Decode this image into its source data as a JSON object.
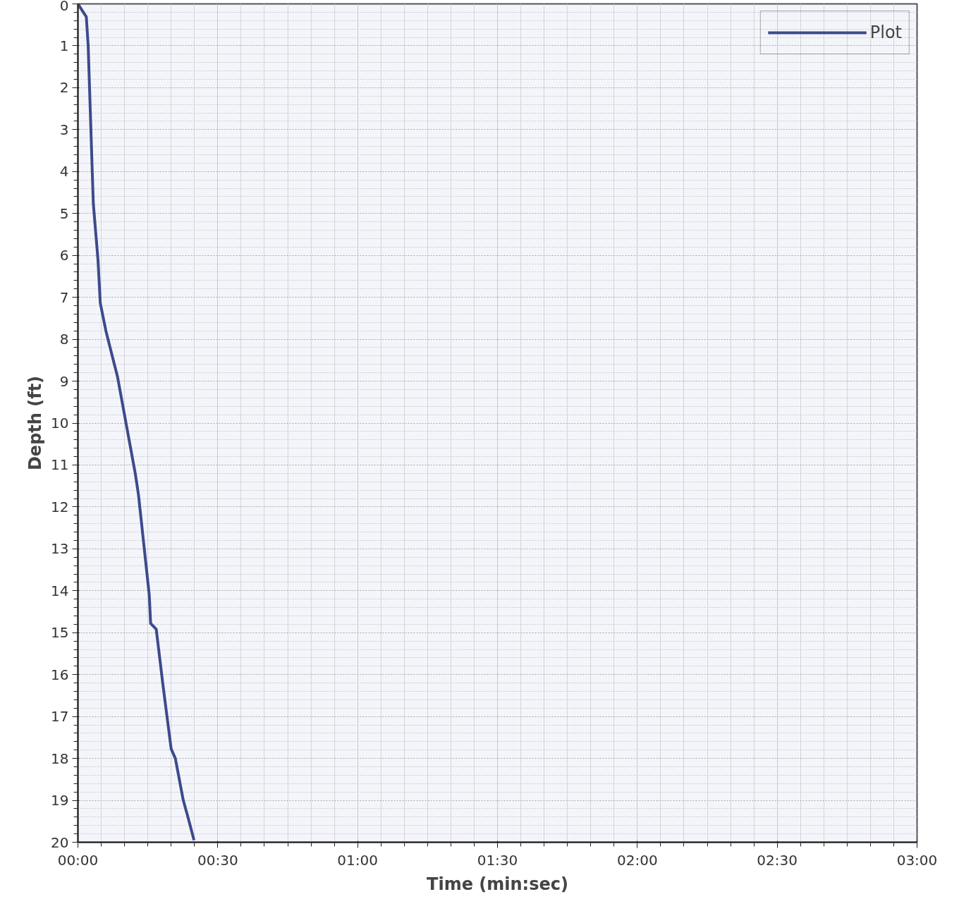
{
  "chart_data": {
    "type": "line",
    "xlabel": "Time (min:sec)",
    "ylabel": "Depth (ft)",
    "series": [
      {
        "name": "Plot",
        "color": "#3d4a8c",
        "x": [
          0,
          1.8,
          2.2,
          3.3,
          4.3,
          4.8,
          6.0,
          8.5,
          12.3,
          13.0,
          15.3,
          15.6,
          16.8,
          18.3,
          20.0,
          20.9,
          22.6,
          23.6,
          24.9
        ],
        "values": [
          0,
          0.31,
          1.0,
          4.76,
          6.1,
          7.14,
          7.8,
          8.9,
          11.2,
          11.72,
          14.1,
          14.78,
          14.92,
          16.3,
          17.77,
          18.0,
          19.0,
          19.4,
          19.95
        ]
      }
    ],
    "xlim": [
      0,
      180
    ],
    "ylim": [
      20,
      0
    ],
    "xticks": [
      {
        "value": 0,
        "label": "00:00"
      },
      {
        "value": 30,
        "label": "00:30"
      },
      {
        "value": 60,
        "label": "01:00"
      },
      {
        "value": 90,
        "label": "01:30"
      },
      {
        "value": 120,
        "label": "02:00"
      },
      {
        "value": 150,
        "label": "02:30"
      },
      {
        "value": 180,
        "label": "03:00"
      }
    ],
    "yticks": [
      0,
      1,
      2,
      3,
      4,
      5,
      6,
      7,
      8,
      9,
      10,
      11,
      12,
      13,
      14,
      15,
      16,
      17,
      18,
      19,
      20
    ],
    "grid": true,
    "legend": "top right",
    "marker": "none",
    "line_style": "solid"
  }
}
